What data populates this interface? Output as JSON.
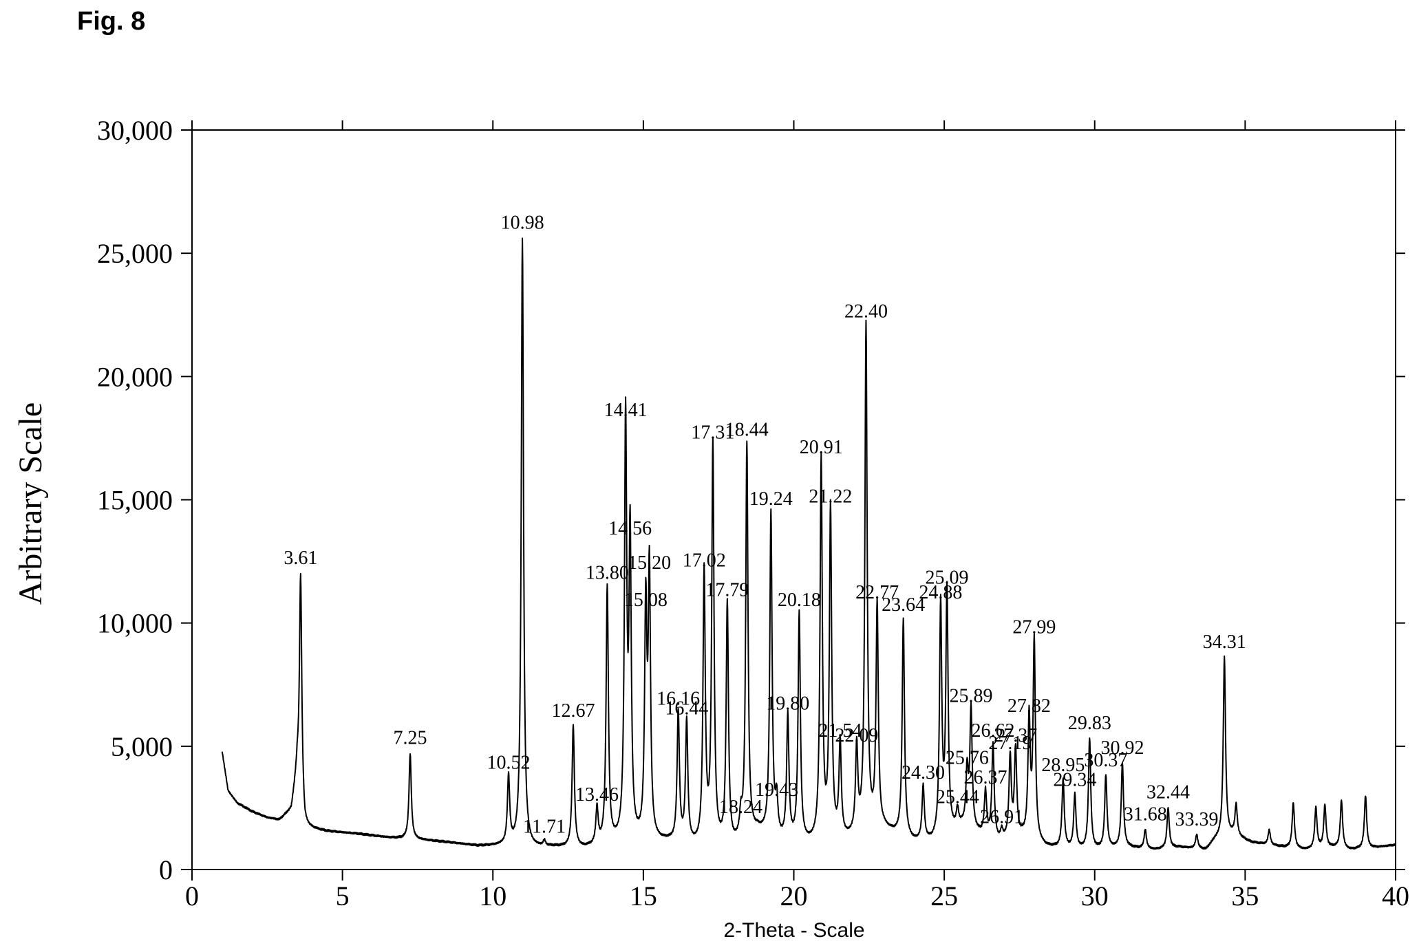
{
  "figure": {
    "label": "Fig. 8"
  },
  "chart_data": {
    "type": "line",
    "xlabel": "2-Theta - Scale",
    "ylabel": "Arbitrary Scale",
    "xlim": [
      0,
      40
    ],
    "ylim": [
      0,
      30000
    ],
    "xticks": [
      0,
      5,
      10,
      15,
      20,
      25,
      30,
      35,
      40
    ],
    "xtick_labels": [
      "0",
      "5",
      "10",
      "15",
      "20",
      "25",
      "30",
      "35",
      "40"
    ],
    "yticks": [
      0,
      5000,
      10000,
      15000,
      20000,
      25000,
      30000
    ],
    "ytick_labels": [
      "0",
      "5,000",
      "10,000",
      "15,000",
      "20,000",
      "25,000",
      "30,000"
    ],
    "grid": false,
    "line_color": "#000000",
    "baseline": [
      [
        1.0,
        4800
      ],
      [
        1.2,
        3200
      ],
      [
        1.5,
        2700
      ],
      [
        2.0,
        2350
      ],
      [
        2.5,
        2100
      ],
      [
        2.9,
        2000
      ],
      [
        3.3,
        2400
      ],
      [
        3.5,
        4000
      ],
      [
        3.75,
        1700
      ],
      [
        4.5,
        1550
      ],
      [
        5.5,
        1450
      ],
      [
        6.5,
        1300
      ],
      [
        7.0,
        1250
      ],
      [
        7.6,
        1200
      ],
      [
        8.5,
        1100
      ],
      [
        9.5,
        950
      ],
      [
        10.3,
        950
      ],
      [
        11.3,
        850
      ],
      [
        12.0,
        900
      ],
      [
        13.0,
        850
      ],
      [
        14.0,
        1000
      ],
      [
        15.8,
        1100
      ],
      [
        16.8,
        900
      ],
      [
        18.0,
        900
      ],
      [
        18.8,
        1500
      ],
      [
        19.6,
        1100
      ],
      [
        20.5,
        1000
      ],
      [
        21.8,
        1200
      ],
      [
        22.2,
        1400
      ],
      [
        23.0,
        1600
      ],
      [
        24.0,
        1100
      ],
      [
        24.6,
        1100
      ],
      [
        25.3,
        1500
      ],
      [
        25.6,
        1700
      ],
      [
        26.2,
        1400
      ],
      [
        26.8,
        1100
      ],
      [
        27.6,
        1300
      ],
      [
        28.4,
        900
      ],
      [
        29.5,
        800
      ],
      [
        30.1,
        800
      ],
      [
        31.0,
        900
      ],
      [
        32.0,
        800
      ],
      [
        32.8,
        900
      ],
      [
        33.7,
        800
      ],
      [
        34.0,
        1200
      ],
      [
        34.6,
        1400
      ],
      [
        35.2,
        1100
      ],
      [
        36.3,
        900
      ],
      [
        37.0,
        800
      ],
      [
        38.0,
        900
      ],
      [
        38.5,
        800
      ],
      [
        39.4,
        900
      ],
      [
        40.0,
        1000
      ]
    ],
    "peaks": [
      {
        "x": 3.61,
        "y": 12000,
        "label": "3.61"
      },
      {
        "x": 7.25,
        "y": 4700,
        "label": "7.25"
      },
      {
        "x": 10.52,
        "y": 3700,
        "label": "10.52"
      },
      {
        "x": 10.98,
        "y": 25600,
        "label": "10.98"
      },
      {
        "x": 11.71,
        "y": 1100,
        "label": "11.71"
      },
      {
        "x": 12.67,
        "y": 5800,
        "label": "12.67"
      },
      {
        "x": 13.46,
        "y": 2400,
        "label": "13.46"
      },
      {
        "x": 13.8,
        "y": 11400,
        "label": "13.80"
      },
      {
        "x": 14.41,
        "y": 18000,
        "label": "14.41"
      },
      {
        "x": 14.56,
        "y": 13200,
        "label": "14.56"
      },
      {
        "x": 15.08,
        "y": 10300,
        "label": "15.08"
      },
      {
        "x": 15.2,
        "y": 11800,
        "label": "15.20"
      },
      {
        "x": 16.16,
        "y": 6300,
        "label": "16.16"
      },
      {
        "x": 16.44,
        "y": 5900,
        "label": "16.44"
      },
      {
        "x": 17.02,
        "y": 11900,
        "label": "17.02"
      },
      {
        "x": 17.31,
        "y": 17100,
        "label": "17.31"
      },
      {
        "x": 17.79,
        "y": 10700,
        "label": "17.79"
      },
      {
        "x": 18.24,
        "y": 1900,
        "label": "18.24"
      },
      {
        "x": 18.44,
        "y": 17200,
        "label": "18.44"
      },
      {
        "x": 19.24,
        "y": 14400,
        "label": "19.24"
      },
      {
        "x": 19.43,
        "y": 2600,
        "label": "19.43"
      },
      {
        "x": 19.8,
        "y": 6100,
        "label": "19.80"
      },
      {
        "x": 20.18,
        "y": 10300,
        "label": "20.18"
      },
      {
        "x": 20.91,
        "y": 16500,
        "label": "20.91"
      },
      {
        "x": 21.22,
        "y": 14500,
        "label": "21.22"
      },
      {
        "x": 21.54,
        "y": 5000,
        "label": "21.54"
      },
      {
        "x": 22.09,
        "y": 4800,
        "label": "22.09"
      },
      {
        "x": 22.4,
        "y": 22000,
        "label": "22.40"
      },
      {
        "x": 22.77,
        "y": 10600,
        "label": "22.77"
      },
      {
        "x": 23.64,
        "y": 10100,
        "label": "23.64"
      },
      {
        "x": 24.3,
        "y": 3300,
        "label": "24.30"
      },
      {
        "x": 24.88,
        "y": 10600,
        "label": "24.88"
      },
      {
        "x": 25.09,
        "y": 11200,
        "label": "25.09"
      },
      {
        "x": 25.44,
        "y": 2300,
        "label": "25.44"
      },
      {
        "x": 25.76,
        "y": 3900,
        "label": "25.76"
      },
      {
        "x": 25.89,
        "y": 6400,
        "label": "25.89"
      },
      {
        "x": 26.37,
        "y": 3100,
        "label": "26.37"
      },
      {
        "x": 26.62,
        "y": 5000,
        "label": "26.62"
      },
      {
        "x": 26.91,
        "y": 1500,
        "label": "26.91"
      },
      {
        "x": 27.19,
        "y": 4500,
        "label": "27.19"
      },
      {
        "x": 27.37,
        "y": 4800,
        "label": "27.37"
      },
      {
        "x": 27.82,
        "y": 6000,
        "label": "27.82"
      },
      {
        "x": 27.99,
        "y": 9200,
        "label": "27.99"
      },
      {
        "x": 28.95,
        "y": 3600,
        "label": "28.95"
      },
      {
        "x": 29.34,
        "y": 3000,
        "label": "29.34"
      },
      {
        "x": 29.83,
        "y": 5300,
        "label": "29.83"
      },
      {
        "x": 30.37,
        "y": 3800,
        "label": "30.37"
      },
      {
        "x": 30.92,
        "y": 4300,
        "label": "30.92"
      },
      {
        "x": 31.68,
        "y": 1600,
        "label": "31.68"
      },
      {
        "x": 32.44,
        "y": 2500,
        "label": "32.44"
      },
      {
        "x": 33.39,
        "y": 1400,
        "label": "33.39"
      },
      {
        "x": 34.31,
        "y": 8600,
        "label": "34.31"
      },
      {
        "x": 34.7,
        "y": 2600
      },
      {
        "x": 35.8,
        "y": 1600
      },
      {
        "x": 36.6,
        "y": 2700
      },
      {
        "x": 37.35,
        "y": 2500
      },
      {
        "x": 37.65,
        "y": 2600
      },
      {
        "x": 38.2,
        "y": 2800
      },
      {
        "x": 39.0,
        "y": 3000
      }
    ]
  }
}
